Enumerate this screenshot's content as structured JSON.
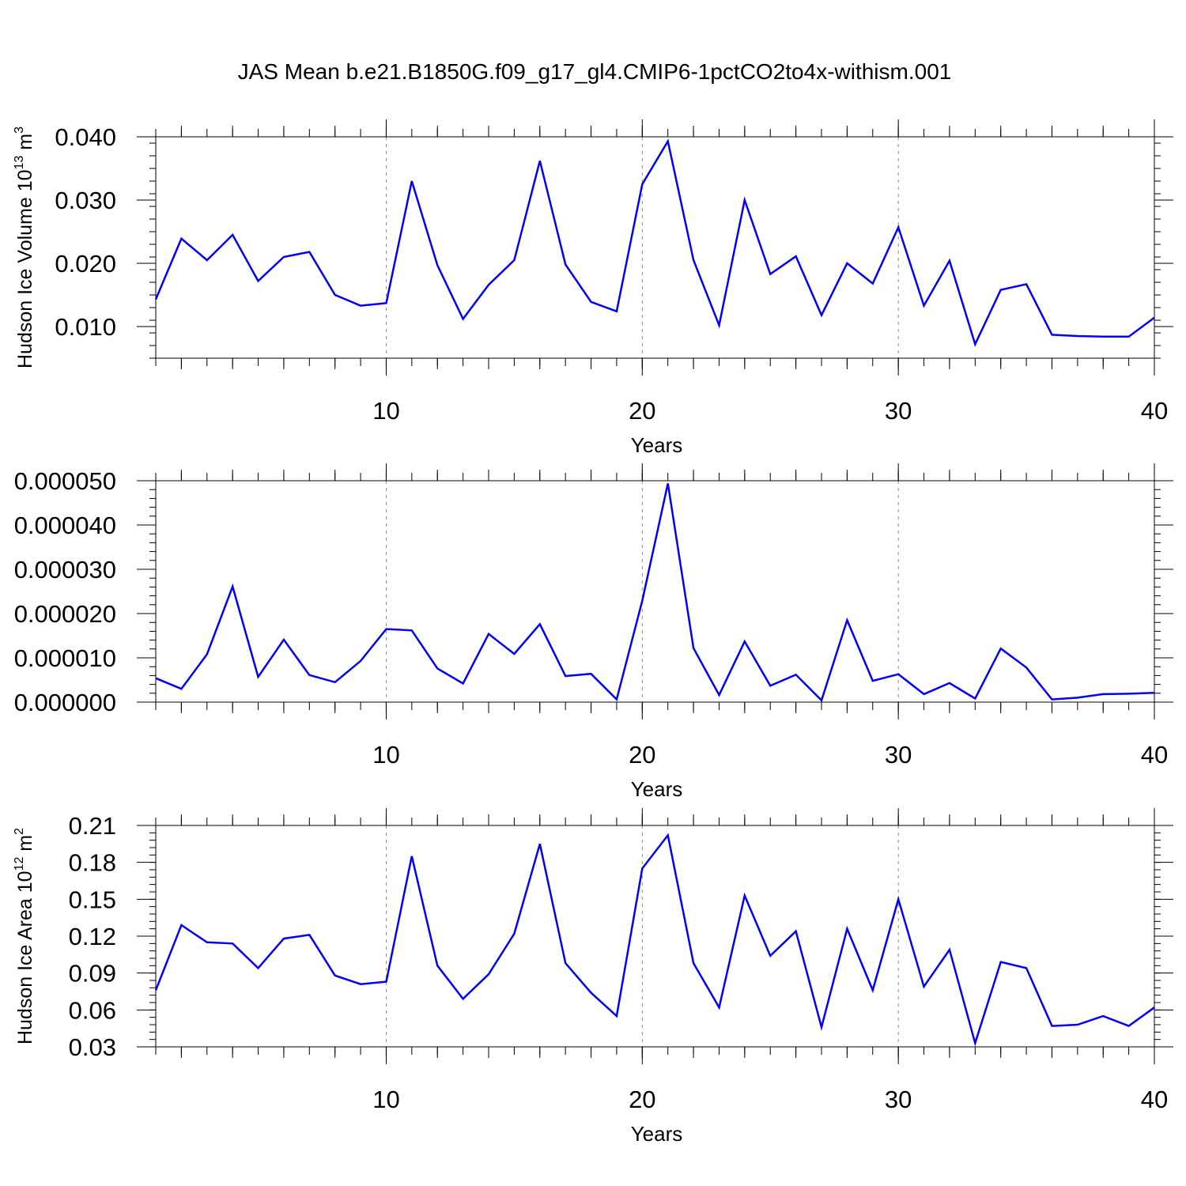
{
  "figure": {
    "title": "JAS Mean b.e21.B1850G.f09_g17_gl4.CMIP6-1pctCO2to4x-withism.001",
    "line_color": "#0000ff",
    "grid_color": "#888888"
  },
  "chart_data": [
    {
      "type": "line",
      "title": "",
      "xlabel": "Years",
      "ylabel": "Hudson Ice Volume 10",
      "ylabel_exponent": "13",
      "ylabel_unit": " m",
      "ylabel_unit_exponent": "3",
      "xlim": [
        1,
        40
      ],
      "ylim": [
        0.005,
        0.04
      ],
      "x_major_ticks": [
        10,
        20,
        30,
        40
      ],
      "x_tick_labels": [
        "10",
        "20",
        "30",
        "40"
      ],
      "y_major_ticks": [
        0.01,
        0.02,
        0.03,
        0.04
      ],
      "y_tick_labels": [
        "0.010",
        "0.020",
        "0.030",
        "0.040"
      ],
      "vertical_gridlines": [
        10,
        20,
        30
      ],
      "series": [
        {
          "x": [
            1,
            2,
            3,
            4,
            5,
            6,
            7,
            8,
            9,
            10,
            11,
            12,
            13,
            14,
            15,
            16,
            17,
            18,
            19,
            20,
            21,
            22,
            23,
            24,
            25,
            26,
            27,
            28,
            29,
            30,
            31,
            32,
            33,
            34,
            35,
            36,
            37,
            38,
            39,
            40
          ],
          "values": [
            0.0143,
            0.0239,
            0.0205,
            0.0245,
            0.0172,
            0.021,
            0.0218,
            0.015,
            0.0133,
            0.0137,
            0.033,
            0.0197,
            0.0112,
            0.0166,
            0.0205,
            0.0362,
            0.0198,
            0.0139,
            0.0124,
            0.0325,
            0.0393,
            0.0205,
            0.0102,
            0.03,
            0.0183,
            0.0211,
            0.0118,
            0.02,
            0.0168,
            0.0257,
            0.0133,
            0.0204,
            0.0072,
            0.0158,
            0.0167,
            0.0087,
            0.0085,
            0.0084,
            0.0084,
            0.0114
          ]
        }
      ]
    },
    {
      "type": "line",
      "title": "",
      "xlabel": "Years",
      "ylabel": "",
      "xlim": [
        1,
        40
      ],
      "ylim": [
        0.0,
        5e-05
      ],
      "x_major_ticks": [
        10,
        20,
        30,
        40
      ],
      "x_tick_labels": [
        "10",
        "20",
        "30",
        "40"
      ],
      "y_major_ticks": [
        0.0,
        1e-05,
        2e-05,
        3e-05,
        4e-05,
        5e-05
      ],
      "y_tick_labels": [
        "0.000000",
        "0.000010",
        "0.000020",
        "0.000030",
        "0.000040",
        "0.000050"
      ],
      "vertical_gridlines": [
        10,
        20,
        30
      ],
      "series": [
        {
          "x": [
            1,
            2,
            3,
            4,
            5,
            6,
            7,
            8,
            9,
            10,
            11,
            12,
            13,
            14,
            15,
            16,
            17,
            18,
            19,
            20,
            21,
            22,
            23,
            24,
            25,
            26,
            27,
            28,
            29,
            30,
            31,
            32,
            33,
            34,
            35,
            36,
            37,
            38,
            39,
            40
          ],
          "values": [
            5.4e-06,
            3e-06,
            1.08e-05,
            2.61e-05,
            5.7e-06,
            1.41e-05,
            6.1e-06,
            4.5e-06,
            9.3e-06,
            1.65e-05,
            1.62e-05,
            7.6e-06,
            4.2e-06,
            1.54e-05,
            1.09e-05,
            1.76e-05,
            5.9e-06,
            6.4e-06,
            6e-07,
            2.29e-05,
            4.94e-05,
            1.22e-05,
            1.6e-06,
            1.37e-05,
            3.7e-06,
            6.2e-06,
            4e-07,
            1.85e-05,
            4.8e-06,
            6.3e-06,
            1.8e-06,
            4.3e-06,
            8e-07,
            1.21e-05,
            7.8e-06,
            6e-07,
            1e-06,
            1.8e-06,
            1.9e-06,
            2.1e-06
          ]
        }
      ]
    },
    {
      "type": "line",
      "title": "",
      "xlabel": "Years",
      "ylabel": "Hudson Ice Area 10",
      "ylabel_exponent": "12",
      "ylabel_unit": " m",
      "ylabel_unit_exponent": "2",
      "xlim": [
        1,
        40
      ],
      "ylim": [
        0.03,
        0.21
      ],
      "x_major_ticks": [
        10,
        20,
        30,
        40
      ],
      "x_tick_labels": [
        "10",
        "20",
        "30",
        "40"
      ],
      "y_major_ticks": [
        0.03,
        0.06,
        0.09,
        0.12,
        0.15,
        0.18,
        0.21
      ],
      "y_tick_labels": [
        "0.03",
        "0.06",
        "0.09",
        "0.12",
        "0.15",
        "0.18",
        "0.21"
      ],
      "vertical_gridlines": [
        10,
        20,
        30
      ],
      "series": [
        {
          "x": [
            1,
            2,
            3,
            4,
            5,
            6,
            7,
            8,
            9,
            10,
            11,
            12,
            13,
            14,
            15,
            16,
            17,
            18,
            19,
            20,
            21,
            22,
            23,
            24,
            25,
            26,
            27,
            28,
            29,
            30,
            31,
            32,
            33,
            34,
            35,
            36,
            37,
            38,
            39,
            40
          ],
          "values": [
            0.076,
            0.129,
            0.115,
            0.114,
            0.094,
            0.118,
            0.121,
            0.088,
            0.081,
            0.083,
            0.185,
            0.096,
            0.069,
            0.089,
            0.122,
            0.195,
            0.098,
            0.074,
            0.055,
            0.175,
            0.202,
            0.098,
            0.062,
            0.153,
            0.104,
            0.124,
            0.046,
            0.126,
            0.076,
            0.15,
            0.079,
            0.109,
            0.033,
            0.099,
            0.094,
            0.047,
            0.048,
            0.055,
            0.047,
            0.062
          ]
        }
      ]
    }
  ]
}
